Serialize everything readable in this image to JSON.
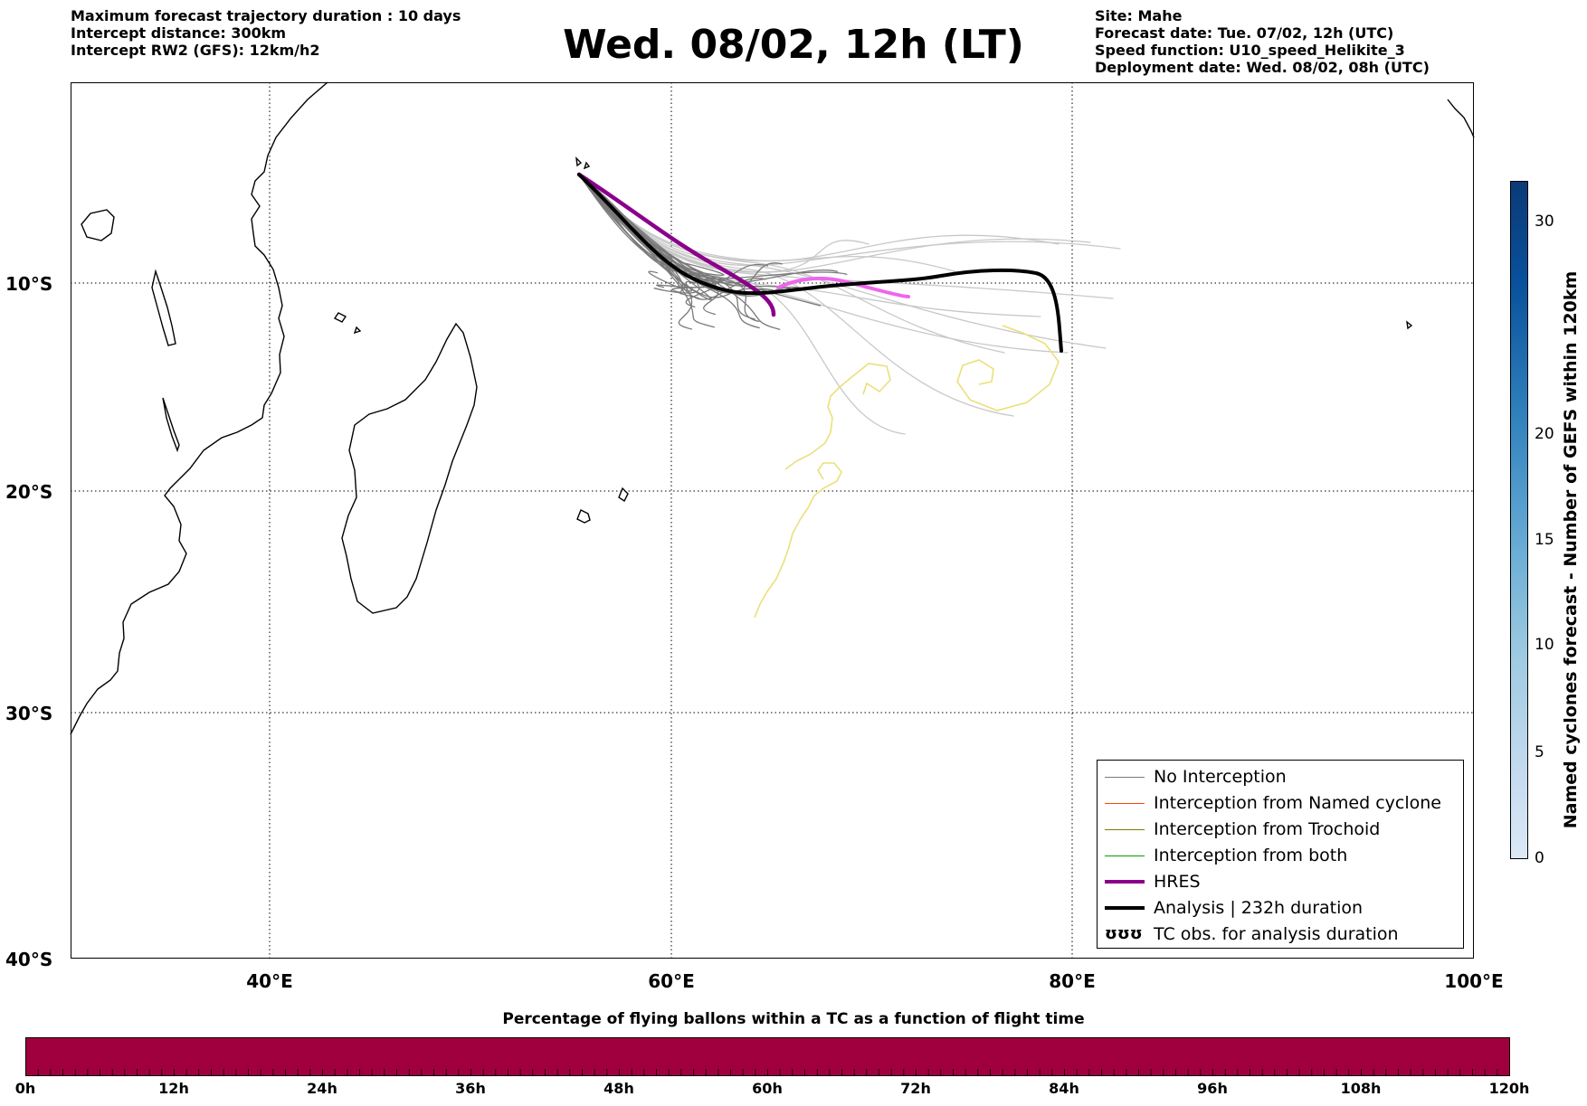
{
  "header": {
    "left": [
      "Maximum forecast trajectory duration : 10 days",
      "Intercept distance: 300km",
      "Intercept RW2 (GFS):  12km/h2"
    ],
    "title": "Wed. 08/02, 12h (LT)",
    "right": [
      "Site: Mahe",
      "Forecast date: Tue. 07/02, 12h (UTC)",
      "Speed function: U10_speed_Helikite_3",
      "Deployment date: Wed. 08/02, 08h (UTC)"
    ]
  },
  "map": {
    "lon_range": [
      30,
      100
    ],
    "lat_range": [
      -40.2,
      0
    ],
    "lat_labels": [
      "10°S",
      "20°S",
      "30°S",
      "40°S"
    ],
    "lon_labels": [
      "40°E",
      "60°E",
      "80°E",
      "100°E"
    ],
    "colors": {
      "no_interception": "#7a7a7a",
      "no_interception_light": "#c8c8c8",
      "hres": "#8b008b",
      "hres_light": "#ee66ee",
      "analysis": "#000000",
      "tc_obs": "#eae07a"
    }
  },
  "legend": {
    "items": [
      {
        "label": "No Interception",
        "color": "#7a7a7a"
      },
      {
        "label": "Interception from Named cyclone",
        "color": "#ff4500"
      },
      {
        "label": "Interception from Trochoid",
        "color": "#7f7a00"
      },
      {
        "label": "Interception from both",
        "color": "#00a000"
      },
      {
        "label": "HRES",
        "color": "#8b008b"
      },
      {
        "label": "Analysis | 232h duration",
        "color": "#000000"
      },
      {
        "label": "TC obs. for analysis duration",
        "symbol": "ʊʊʊ"
      }
    ]
  },
  "colorbar_vertical": {
    "title": "Named cyclones forecast - Number of GEFS within 120km",
    "ticks": [
      "0",
      "5",
      "10",
      "15",
      "20",
      "30"
    ],
    "color_low": "#dce9f7",
    "color_high": "#0b3a77"
  },
  "colorbar_horizontal": {
    "title": "Percentage of flying ballons within a TC as a function of flight time",
    "ticks": [
      "0h",
      "12h",
      "24h",
      "36h",
      "48h",
      "60h",
      "72h",
      "84h",
      "96h",
      "108h",
      "120h"
    ],
    "fill": "#a0003e"
  }
}
